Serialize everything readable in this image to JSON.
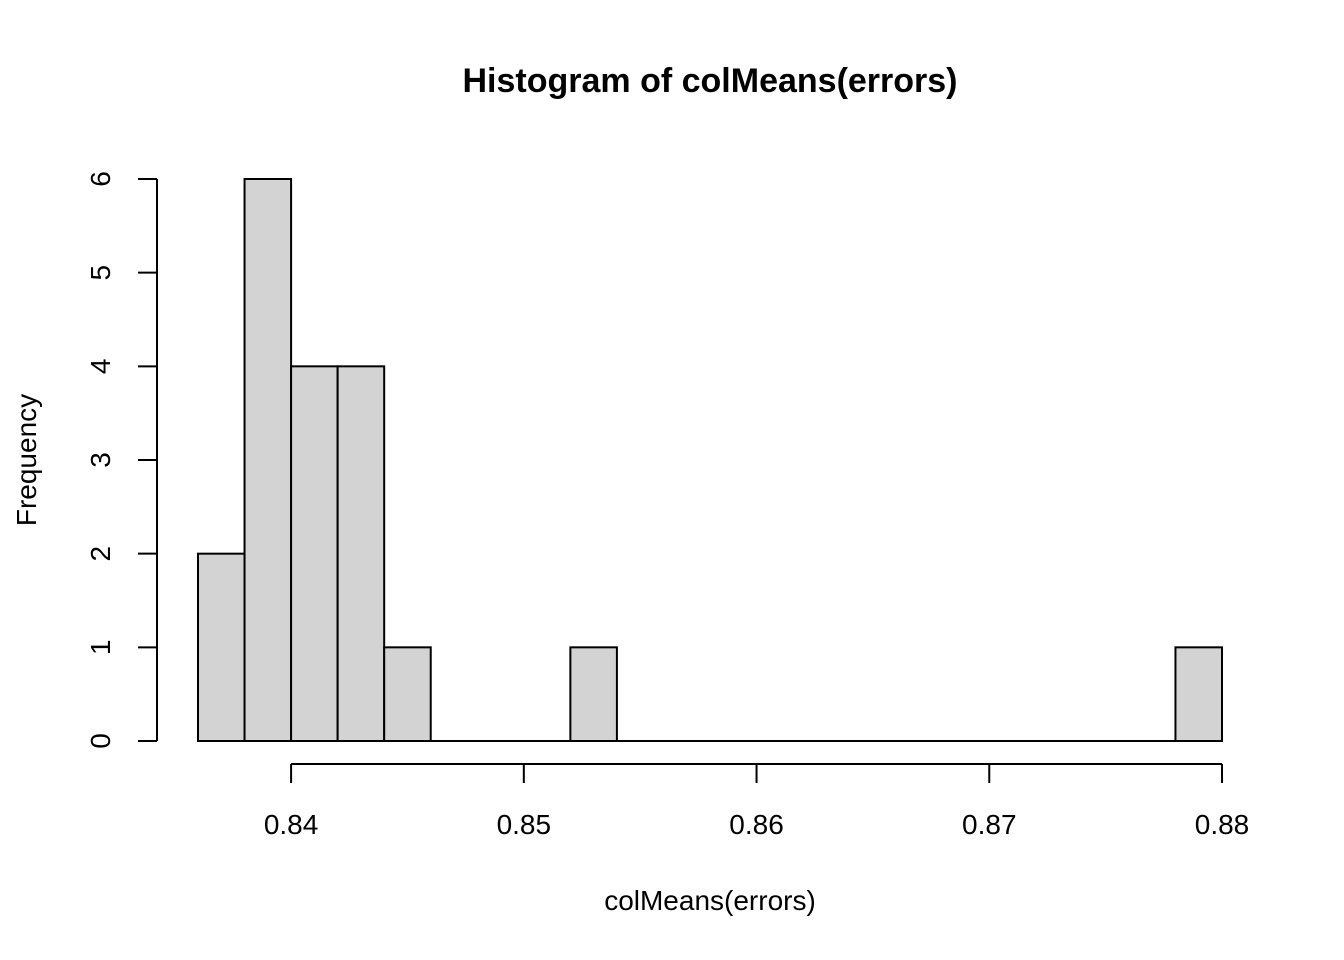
{
  "chart_data": {
    "type": "histogram",
    "title": "Histogram of colMeans(errors)",
    "xlabel": "colMeans(errors)",
    "ylabel": "Frequency",
    "xlim": [
      0.836,
      0.88
    ],
    "ylim": [
      0,
      6
    ],
    "x_ticks": [
      0.84,
      0.85,
      0.86,
      0.87,
      0.88
    ],
    "x_tick_labels": [
      "0.84",
      "0.85",
      "0.86",
      "0.87",
      "0.88"
    ],
    "y_ticks": [
      0,
      1,
      2,
      3,
      4,
      5,
      6
    ],
    "y_tick_labels": [
      "0",
      "1",
      "2",
      "3",
      "4",
      "5",
      "6"
    ],
    "bins": [
      {
        "start": 0.836,
        "end": 0.838,
        "count": 2
      },
      {
        "start": 0.838,
        "end": 0.84,
        "count": 6
      },
      {
        "start": 0.84,
        "end": 0.842,
        "count": 4
      },
      {
        "start": 0.842,
        "end": 0.844,
        "count": 4
      },
      {
        "start": 0.844,
        "end": 0.846,
        "count": 1
      },
      {
        "start": 0.846,
        "end": 0.848,
        "count": 0
      },
      {
        "start": 0.848,
        "end": 0.85,
        "count": 0
      },
      {
        "start": 0.85,
        "end": 0.852,
        "count": 0
      },
      {
        "start": 0.852,
        "end": 0.854,
        "count": 1
      },
      {
        "start": 0.854,
        "end": 0.856,
        "count": 0
      },
      {
        "start": 0.856,
        "end": 0.858,
        "count": 0
      },
      {
        "start": 0.858,
        "end": 0.86,
        "count": 0
      },
      {
        "start": 0.86,
        "end": 0.862,
        "count": 0
      },
      {
        "start": 0.862,
        "end": 0.864,
        "count": 0
      },
      {
        "start": 0.864,
        "end": 0.866,
        "count": 0
      },
      {
        "start": 0.866,
        "end": 0.868,
        "count": 0
      },
      {
        "start": 0.868,
        "end": 0.87,
        "count": 0
      },
      {
        "start": 0.87,
        "end": 0.872,
        "count": 0
      },
      {
        "start": 0.872,
        "end": 0.874,
        "count": 0
      },
      {
        "start": 0.874,
        "end": 0.876,
        "count": 0
      },
      {
        "start": 0.876,
        "end": 0.878,
        "count": 0
      },
      {
        "start": 0.878,
        "end": 0.88,
        "count": 1
      }
    ],
    "bar_fill": "#d3d3d3",
    "bar_stroke": "#000000",
    "grid": false,
    "legend": "none"
  }
}
